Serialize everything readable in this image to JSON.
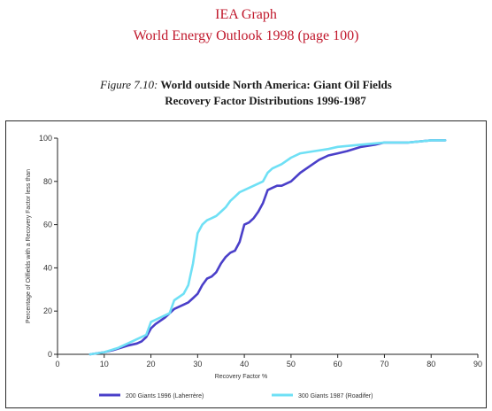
{
  "header": {
    "line1": "IEA Graph",
    "line2": "World Energy Outlook 1998 (page 100)"
  },
  "figure": {
    "prefix": "Figure 7.10:",
    "title_line1": "World outside North America:  Giant Oil Fields",
    "title_line2": "Recovery Factor Distributions 1996-1987"
  },
  "colors": {
    "header": "#c0172b",
    "series_1996": "#4a3fc9",
    "series_1987": "#6fe0f5"
  },
  "chart_data": {
    "type": "line",
    "title": "World outside North America:  Giant Oil Fields Recovery Factor Distributions 1996-1987",
    "xlabel": "Recovery Factor %",
    "ylabel": "Percentage of Oilfields with a Recovery Factor less than",
    "xlim": [
      0,
      90
    ],
    "ylim": [
      0,
      100
    ],
    "xticks": [
      0,
      10,
      20,
      30,
      40,
      50,
      60,
      70,
      80,
      90
    ],
    "yticks": [
      0,
      20,
      40,
      60,
      80,
      100
    ],
    "grid": false,
    "legend_position": "bottom",
    "series": [
      {
        "name": "200 Giants 1996 (Laherrère)",
        "color": "#4a3fc9",
        "x": [
          7,
          10,
          12,
          15,
          17,
          18,
          19,
          20,
          21,
          23,
          25,
          27,
          28,
          29,
          30,
          31,
          32,
          33,
          34,
          35,
          36,
          37,
          38,
          39,
          40,
          41,
          42,
          43,
          44,
          45,
          46,
          47,
          48,
          50,
          52,
          54,
          56,
          58,
          60,
          62,
          65,
          68,
          70,
          75,
          80,
          83
        ],
        "y": [
          0,
          1,
          2,
          4,
          5,
          6,
          8,
          12,
          14,
          17,
          21,
          23,
          24,
          26,
          28,
          32,
          35,
          36,
          38,
          42,
          45,
          47,
          48,
          52,
          60,
          61,
          63,
          66,
          70,
          76,
          77,
          78,
          78,
          80,
          84,
          87,
          90,
          92,
          93,
          94,
          96,
          97,
          98,
          98,
          99,
          99
        ]
      },
      {
        "name": "300 Giants 1987 (Roadifer)",
        "color": "#6fe0f5",
        "x": [
          7,
          10,
          13,
          15,
          17,
          19,
          20,
          22,
          24,
          25,
          27,
          28,
          29,
          30,
          31,
          32,
          33,
          34,
          35,
          36,
          37,
          38,
          39,
          40,
          42,
          44,
          45,
          46,
          48,
          50,
          52,
          55,
          58,
          60,
          65,
          70,
          75,
          80,
          83
        ],
        "y": [
          0,
          1,
          3,
          5,
          7,
          9,
          15,
          17,
          19,
          25,
          28,
          32,
          42,
          56,
          60,
          62,
          63,
          64,
          66,
          68,
          71,
          73,
          75,
          76,
          78,
          80,
          84,
          86,
          88,
          91,
          93,
          94,
          95,
          96,
          97,
          98,
          98,
          99,
          99
        ]
      }
    ]
  }
}
